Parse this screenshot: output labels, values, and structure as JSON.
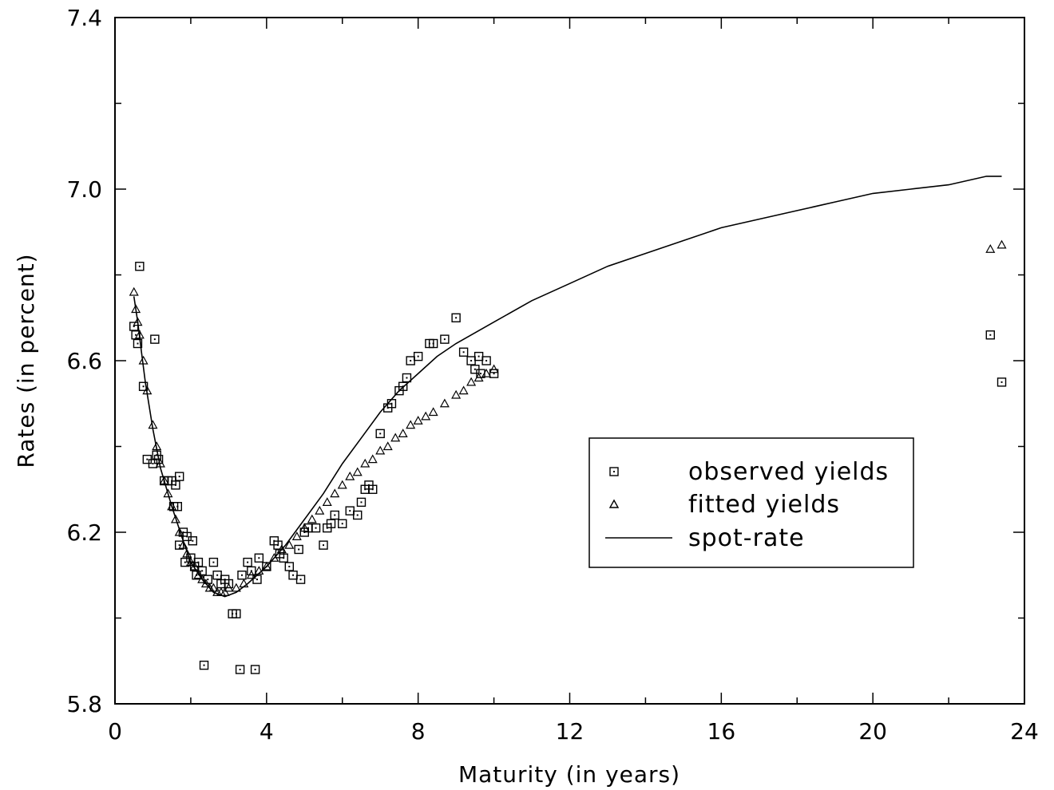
{
  "chart_data": {
    "type": "scatter",
    "title": "",
    "xlabel": "Maturity (in years)",
    "ylabel": "Rates (in percent)",
    "xlim": [
      0,
      24
    ],
    "ylim": [
      5.8,
      7.4
    ],
    "xticks": [
      0,
      4,
      8,
      12,
      16,
      20,
      24
    ],
    "xtick_labels": [
      "0",
      "4",
      "8",
      "12",
      "16",
      "20",
      "24"
    ],
    "yticks": [
      5.8,
      6.2,
      6.6,
      7.0,
      7.4
    ],
    "ytick_labels": [
      "5.8",
      "6.2",
      "6.6",
      "7.0",
      "7.4"
    ],
    "grid": false,
    "legend_position": "center-right",
    "series": [
      {
        "name": "observed yields",
        "marker": "square",
        "points": [
          [
            0.5,
            6.68
          ],
          [
            0.55,
            6.66
          ],
          [
            0.6,
            6.64
          ],
          [
            0.65,
            6.82
          ],
          [
            0.75,
            6.54
          ],
          [
            0.85,
            6.37
          ],
          [
            1.0,
            6.36
          ],
          [
            1.05,
            6.65
          ],
          [
            1.1,
            6.38
          ],
          [
            1.15,
            6.37
          ],
          [
            1.3,
            6.32
          ],
          [
            1.4,
            6.32
          ],
          [
            1.5,
            6.32
          ],
          [
            1.55,
            6.26
          ],
          [
            1.6,
            6.31
          ],
          [
            1.65,
            6.26
          ],
          [
            1.7,
            6.33
          ],
          [
            1.7,
            6.17
          ],
          [
            1.8,
            6.2
          ],
          [
            1.85,
            6.13
          ],
          [
            1.9,
            6.19
          ],
          [
            2.0,
            6.14
          ],
          [
            2.05,
            6.18
          ],
          [
            2.1,
            6.12
          ],
          [
            2.15,
            6.1
          ],
          [
            2.2,
            6.13
          ],
          [
            2.3,
            6.11
          ],
          [
            2.35,
            5.89
          ],
          [
            2.45,
            6.09
          ],
          [
            2.6,
            6.13
          ],
          [
            2.7,
            6.1
          ],
          [
            2.8,
            6.08
          ],
          [
            2.9,
            6.09
          ],
          [
            3.0,
            6.08
          ],
          [
            3.1,
            6.01
          ],
          [
            3.2,
            6.01
          ],
          [
            3.3,
            5.88
          ],
          [
            3.35,
            6.1
          ],
          [
            3.5,
            6.13
          ],
          [
            3.6,
            6.11
          ],
          [
            3.7,
            5.88
          ],
          [
            3.75,
            6.09
          ],
          [
            3.8,
            6.14
          ],
          [
            4.0,
            6.12
          ],
          [
            4.2,
            6.18
          ],
          [
            4.3,
            6.17
          ],
          [
            4.35,
            6.15
          ],
          [
            4.45,
            6.14
          ],
          [
            4.6,
            6.12
          ],
          [
            4.7,
            6.1
          ],
          [
            4.85,
            6.16
          ],
          [
            4.9,
            6.09
          ],
          [
            5.0,
            6.2
          ],
          [
            5.1,
            6.21
          ],
          [
            5.3,
            6.21
          ],
          [
            5.5,
            6.17
          ],
          [
            5.6,
            6.21
          ],
          [
            5.7,
            6.22
          ],
          [
            5.8,
            6.24
          ],
          [
            6.0,
            6.22
          ],
          [
            6.2,
            6.25
          ],
          [
            6.4,
            6.24
          ],
          [
            6.5,
            6.27
          ],
          [
            6.6,
            6.3
          ],
          [
            6.7,
            6.31
          ],
          [
            6.8,
            6.3
          ],
          [
            7.0,
            6.43
          ],
          [
            7.2,
            6.49
          ],
          [
            7.3,
            6.5
          ],
          [
            7.5,
            6.53
          ],
          [
            7.6,
            6.54
          ],
          [
            7.7,
            6.56
          ],
          [
            7.8,
            6.6
          ],
          [
            8.0,
            6.61
          ],
          [
            8.3,
            6.64
          ],
          [
            8.4,
            6.64
          ],
          [
            8.7,
            6.65
          ],
          [
            9.0,
            6.7
          ],
          [
            9.2,
            6.62
          ],
          [
            9.4,
            6.6
          ],
          [
            9.5,
            6.58
          ],
          [
            9.6,
            6.61
          ],
          [
            9.65,
            6.57
          ],
          [
            9.8,
            6.6
          ],
          [
            10.0,
            6.57
          ],
          [
            23.1,
            6.66
          ],
          [
            23.4,
            6.55
          ]
        ]
      },
      {
        "name": "fitted yields",
        "marker": "triangle",
        "points": [
          [
            0.5,
            6.76
          ],
          [
            0.55,
            6.72
          ],
          [
            0.6,
            6.69
          ],
          [
            0.65,
            6.66
          ],
          [
            0.75,
            6.6
          ],
          [
            0.85,
            6.53
          ],
          [
            1.0,
            6.45
          ],
          [
            1.1,
            6.4
          ],
          [
            1.2,
            6.36
          ],
          [
            1.3,
            6.32
          ],
          [
            1.4,
            6.29
          ],
          [
            1.5,
            6.26
          ],
          [
            1.6,
            6.23
          ],
          [
            1.7,
            6.2
          ],
          [
            1.8,
            6.17
          ],
          [
            1.9,
            6.15
          ],
          [
            2.0,
            6.13
          ],
          [
            2.1,
            6.12
          ],
          [
            2.2,
            6.1
          ],
          [
            2.3,
            6.09
          ],
          [
            2.4,
            6.08
          ],
          [
            2.5,
            6.07
          ],
          [
            2.6,
            6.07
          ],
          [
            2.7,
            6.06
          ],
          [
            2.8,
            6.06
          ],
          [
            2.9,
            6.06
          ],
          [
            3.0,
            6.07
          ],
          [
            3.2,
            6.07
          ],
          [
            3.4,
            6.08
          ],
          [
            3.6,
            6.1
          ],
          [
            3.8,
            6.11
          ],
          [
            4.0,
            6.12
          ],
          [
            4.2,
            6.14
          ],
          [
            4.4,
            6.16
          ],
          [
            4.6,
            6.17
          ],
          [
            4.8,
            6.19
          ],
          [
            5.0,
            6.21
          ],
          [
            5.2,
            6.23
          ],
          [
            5.4,
            6.25
          ],
          [
            5.6,
            6.27
          ],
          [
            5.8,
            6.29
          ],
          [
            6.0,
            6.31
          ],
          [
            6.2,
            6.33
          ],
          [
            6.4,
            6.34
          ],
          [
            6.6,
            6.36
          ],
          [
            6.8,
            6.37
          ],
          [
            7.0,
            6.39
          ],
          [
            7.2,
            6.4
          ],
          [
            7.4,
            6.42
          ],
          [
            7.6,
            6.43
          ],
          [
            7.8,
            6.45
          ],
          [
            8.0,
            6.46
          ],
          [
            8.2,
            6.47
          ],
          [
            8.4,
            6.48
          ],
          [
            8.7,
            6.5
          ],
          [
            9.0,
            6.52
          ],
          [
            9.2,
            6.53
          ],
          [
            9.4,
            6.55
          ],
          [
            9.6,
            6.56
          ],
          [
            9.8,
            6.57
          ],
          [
            10.0,
            6.58
          ],
          [
            23.1,
            6.86
          ],
          [
            23.4,
            6.87
          ]
        ]
      },
      {
        "name": "spot-rate",
        "marker": "line",
        "points": [
          [
            0.5,
            6.75
          ],
          [
            0.6,
            6.69
          ],
          [
            0.7,
            6.62
          ],
          [
            0.8,
            6.55
          ],
          [
            1.0,
            6.44
          ],
          [
            1.2,
            6.35
          ],
          [
            1.5,
            6.26
          ],
          [
            1.8,
            6.18
          ],
          [
            2.0,
            6.13
          ],
          [
            2.3,
            6.09
          ],
          [
            2.6,
            6.06
          ],
          [
            2.9,
            6.05
          ],
          [
            3.2,
            6.06
          ],
          [
            3.5,
            6.08
          ],
          [
            4.0,
            6.12
          ],
          [
            4.5,
            6.17
          ],
          [
            5.0,
            6.23
          ],
          [
            5.5,
            6.29
          ],
          [
            6.0,
            6.36
          ],
          [
            6.5,
            6.42
          ],
          [
            7.0,
            6.48
          ],
          [
            7.5,
            6.53
          ],
          [
            8.0,
            6.57
          ],
          [
            8.5,
            6.61
          ],
          [
            9.0,
            6.64
          ],
          [
            10.0,
            6.69
          ],
          [
            11.0,
            6.74
          ],
          [
            12.0,
            6.78
          ],
          [
            13.0,
            6.82
          ],
          [
            14.0,
            6.85
          ],
          [
            15.0,
            6.88
          ],
          [
            16.0,
            6.91
          ],
          [
            17.0,
            6.93
          ],
          [
            18.0,
            6.95
          ],
          [
            19.0,
            6.97
          ],
          [
            20.0,
            6.99
          ],
          [
            21.0,
            7.0
          ],
          [
            22.0,
            7.01
          ],
          [
            23.0,
            7.03
          ],
          [
            23.4,
            7.03
          ]
        ]
      }
    ]
  }
}
